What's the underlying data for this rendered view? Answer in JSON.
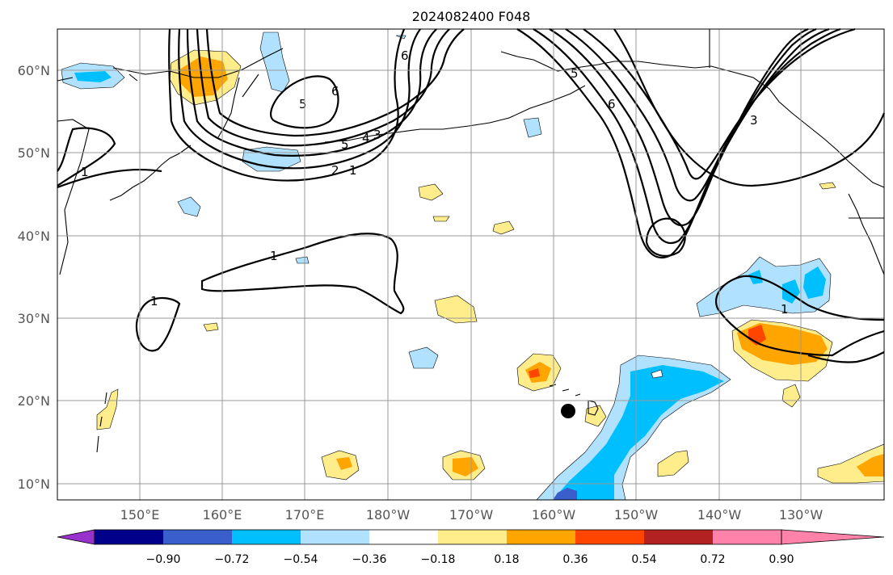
{
  "map": {
    "title": "2024082400 F048",
    "x_ticks": [
      "150°E",
      "160°E",
      "170°E",
      "180°W",
      "170°W",
      "160°W",
      "150°W",
      "140°W",
      "130°W"
    ],
    "y_ticks": [
      "60°N",
      "50°N",
      "40°N",
      "30°N",
      "20°N",
      "10°N"
    ],
    "contour_labels": [
      "6",
      "5",
      "6",
      "5",
      "4",
      "3",
      "2",
      "1",
      "1",
      "1",
      "1",
      "1",
      "6",
      "5",
      "3"
    ],
    "marker": "black-dot"
  },
  "colorbar": {
    "labels": [
      "−0.90",
      "−0.72",
      "−0.54",
      "−0.36",
      "−0.18",
      "0.18",
      "0.36",
      "0.54",
      "0.72",
      "0.90"
    ],
    "colors": [
      "#9932cc",
      "#00008b",
      "#3a5fcd",
      "#00bfff",
      "#b0e2ff",
      "#ffffff",
      "#ffec8b",
      "#ffa500",
      "#ff4500",
      "#b22222",
      "#ff82ab"
    ]
  }
}
